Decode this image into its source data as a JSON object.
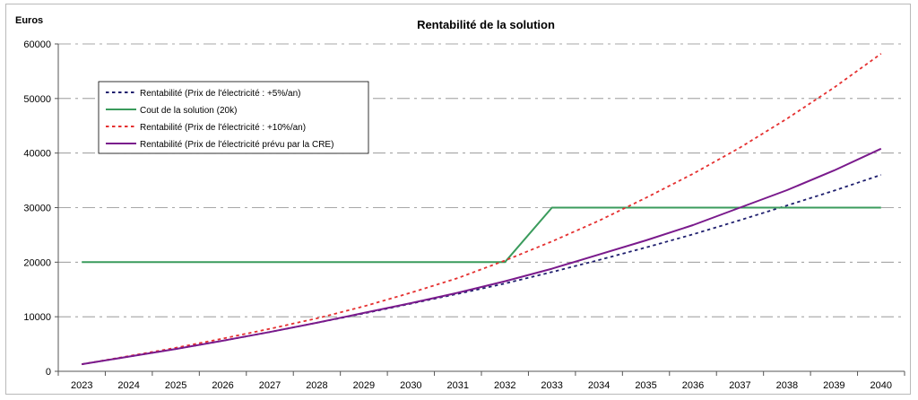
{
  "chart_data": {
    "type": "line",
    "title": "Rentabilité de la solution",
    "ylabel": "Euros",
    "xlabel": "",
    "ylim": [
      0,
      60000
    ],
    "grid": true,
    "legend_position": "top-left",
    "x": [
      "2023",
      "2024",
      "2025",
      "2026",
      "2027",
      "2028",
      "2029",
      "2030",
      "2031",
      "2032",
      "2033",
      "2034",
      "2035",
      "2036",
      "2037",
      "2038",
      "2039",
      "2040"
    ],
    "y_ticks": [
      "0",
      "10000",
      "20000",
      "30000",
      "40000",
      "50000",
      "60000"
    ],
    "series": [
      {
        "name": "Rentabilité (Prix de l'électricité : +5%/an)",
        "style": "dotted",
        "color": "#1f1f6e",
        "values": [
          1300,
          2700,
          4100,
          5600,
          7200,
          8900,
          10600,
          12400,
          14200,
          16100,
          18200,
          20400,
          22700,
          25100,
          27700,
          30400,
          33100,
          36000
        ]
      },
      {
        "name": "Cout de la solution (20k)",
        "style": "solid",
        "color": "#3a9b5c",
        "values": [
          20000,
          20000,
          20000,
          20000,
          20000,
          20000,
          20000,
          20000,
          20000,
          20000,
          30000,
          30000,
          30000,
          30000,
          30000,
          30000,
          30000,
          30000
        ]
      },
      {
        "name": "Rentabilité (Prix de l'électricité : +10%/an)",
        "style": "dotted",
        "color": "#e53030",
        "values": [
          1300,
          2800,
          4300,
          6000,
          7800,
          9700,
          11900,
          14400,
          17100,
          20300,
          23800,
          27600,
          31800,
          36200,
          41000,
          46300,
          52000,
          58200
        ]
      },
      {
        "name": "Rentabilité (Prix de l'électricité prévu par la CRE)",
        "style": "solid",
        "color": "#7a1a8c",
        "values": [
          1300,
          2700,
          4100,
          5600,
          7200,
          8900,
          10700,
          12500,
          14400,
          16500,
          18800,
          21400,
          24000,
          26800,
          30000,
          33200,
          36800,
          40800
        ]
      }
    ]
  }
}
